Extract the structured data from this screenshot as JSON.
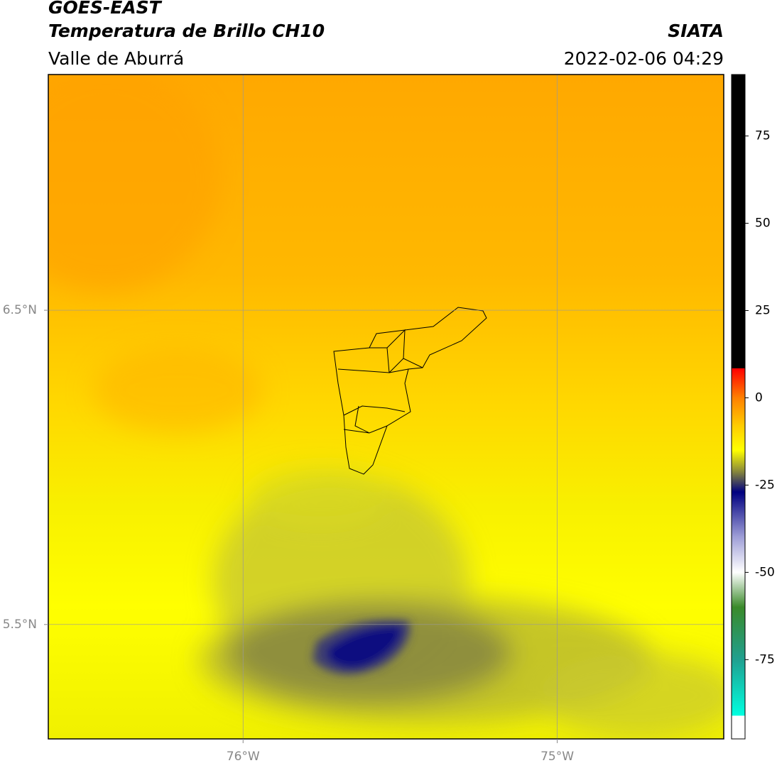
{
  "chart_data": {
    "type": "map",
    "title": "GOES-EAST",
    "subtitle": "Temperatura de Brillo CH10",
    "region": "Valle de Aburrá",
    "source": "SIATA",
    "timestamp": "2022-02-06 04:29",
    "xlim": [
      -76.62,
      -74.47
    ],
    "ylim": [
      5.136,
      7.25
    ],
    "xticks": [
      {
        "value": -76,
        "label": "76°W"
      },
      {
        "value": -75,
        "label": "75°W"
      }
    ],
    "yticks": [
      {
        "value": 6.5,
        "label": "6.5°N"
      },
      {
        "value": 5.5,
        "label": "5.5°N"
      }
    ],
    "grid": true,
    "colorbar": {
      "clim": [
        -97.7,
        92.6
      ],
      "ticks": [
        75,
        50,
        25,
        0,
        -25,
        -50,
        -75
      ],
      "colormap": [
        {
          "value": 92.6,
          "color": "#000000"
        },
        {
          "value": 8.5,
          "color": "#000000"
        },
        {
          "value": 8.4,
          "color": "#ff0000"
        },
        {
          "value": 0,
          "color": "#ff8000"
        },
        {
          "value": -8,
          "color": "#ffcc00"
        },
        {
          "value": -15,
          "color": "#ffff00"
        },
        {
          "value": -21,
          "color": "#8a8a3a"
        },
        {
          "value": -27,
          "color": "#000080"
        },
        {
          "value": -40,
          "color": "#a0a0d8"
        },
        {
          "value": -50,
          "color": "#ffffff"
        },
        {
          "value": -60,
          "color": "#3a8a2a"
        },
        {
          "value": -75,
          "color": "#20a090"
        },
        {
          "value": -91,
          "color": "#00ffe0"
        },
        {
          "value": -91.1,
          "color": "#ffffff"
        },
        {
          "value": -97.7,
          "color": "#ffffff"
        }
      ]
    }
  }
}
